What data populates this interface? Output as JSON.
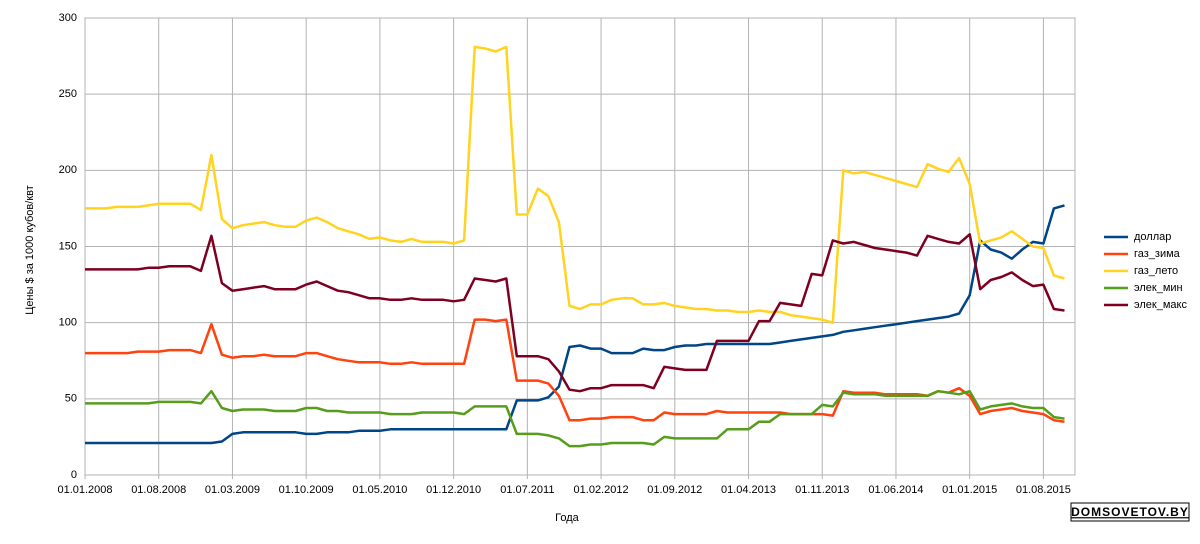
{
  "chart_data": {
    "type": "line",
    "y_label": "Цены $ за 1000 кубов/квт",
    "x_label": "Года",
    "watermark": "DOMSOVETOV.BY",
    "legend": "right",
    "grid": true,
    "ylim": [
      0,
      300
    ],
    "yticks": [
      0,
      50,
      100,
      150,
      200,
      250,
      300
    ],
    "categories": [
      "01.01.2008",
      null,
      null,
      null,
      null,
      null,
      null,
      "01.08.2008",
      null,
      null,
      null,
      null,
      null,
      null,
      "01.03.2009",
      null,
      null,
      null,
      null,
      null,
      null,
      "01.10.2009",
      null,
      null,
      null,
      null,
      null,
      null,
      "01.05.2010",
      null,
      null,
      null,
      null,
      null,
      null,
      "01.12.2010",
      null,
      null,
      null,
      null,
      null,
      null,
      "01.07.2011",
      null,
      null,
      null,
      null,
      null,
      null,
      "01.02.2012",
      null,
      null,
      null,
      null,
      null,
      null,
      "01.09.2012",
      null,
      null,
      null,
      null,
      null,
      null,
      "01.04.2013",
      null,
      null,
      null,
      null,
      null,
      null,
      "01.11.2013",
      null,
      null,
      null,
      null,
      null,
      null,
      "01.06.2014",
      null,
      null,
      null,
      null,
      null,
      null,
      "01.01.2015",
      null,
      null,
      null,
      null,
      null,
      null,
      "01.08.2015",
      null,
      null
    ],
    "series": [
      {
        "name": "доллар",
        "color": "#004586",
        "values": [
          21,
          21,
          21,
          21,
          21,
          21,
          21,
          21,
          21,
          21,
          21,
          21,
          21,
          22,
          27,
          28,
          28,
          28,
          28,
          28,
          28,
          27,
          27,
          28,
          28,
          28,
          29,
          29,
          29,
          30,
          30,
          30,
          30,
          30,
          30,
          30,
          30,
          30,
          30,
          30,
          30,
          49,
          49,
          49,
          51,
          58,
          84,
          85,
          83,
          83,
          80,
          80,
          80,
          83,
          82,
          82,
          84,
          85,
          85,
          86,
          86,
          86,
          86,
          86,
          86,
          86,
          87,
          88,
          89,
          90,
          91,
          92,
          94,
          95,
          96,
          97,
          98,
          99,
          100,
          101,
          102,
          103,
          104,
          106,
          118,
          154,
          148,
          146,
          142,
          148,
          153,
          152,
          175,
          177
        ]
      },
      {
        "name": "газ_зима",
        "color": "#ff420e",
        "values": [
          80,
          80,
          80,
          80,
          80,
          81,
          81,
          81,
          82,
          82,
          82,
          80,
          99,
          79,
          77,
          78,
          78,
          79,
          78,
          78,
          78,
          80,
          80,
          78,
          76,
          75,
          74,
          74,
          74,
          73,
          73,
          74,
          73,
          73,
          73,
          73,
          73,
          102,
          102,
          101,
          102,
          62,
          62,
          62,
          60,
          52,
          36,
          36,
          37,
          37,
          38,
          38,
          38,
          36,
          36,
          41,
          40,
          40,
          40,
          40,
          42,
          41,
          41,
          41,
          41,
          41,
          41,
          40,
          40,
          40,
          40,
          39,
          55,
          54,
          54,
          54,
          53,
          53,
          53,
          53,
          52,
          55,
          54,
          57,
          52,
          40,
          42,
          43,
          44,
          42,
          41,
          40,
          36,
          35
        ]
      },
      {
        "name": "газ_лето",
        "color": "#ffd320",
        "values": [
          175,
          175,
          175,
          176,
          176,
          176,
          177,
          178,
          178,
          178,
          178,
          174,
          210,
          168,
          162,
          164,
          165,
          166,
          164,
          163,
          163,
          167,
          169,
          166,
          162,
          160,
          158,
          155,
          156,
          154,
          153,
          155,
          153,
          153,
          153,
          152,
          154,
          281,
          280,
          278,
          281,
          171,
          171,
          188,
          183,
          166,
          111,
          109,
          112,
          112,
          115,
          116,
          116,
          112,
          112,
          113,
          111,
          110,
          109,
          109,
          108,
          108,
          107,
          107,
          108,
          107,
          107,
          105,
          104,
          103,
          102,
          100,
          200,
          198,
          199,
          197,
          195,
          193,
          191,
          189,
          204,
          201,
          199,
          208,
          191,
          152,
          154,
          156,
          160,
          155,
          150,
          149,
          131,
          129
        ]
      },
      {
        "name": "элек_мин",
        "color": "#579d1c",
        "values": [
          47,
          47,
          47,
          47,
          47,
          47,
          47,
          48,
          48,
          48,
          48,
          47,
          55,
          44,
          42,
          43,
          43,
          43,
          42,
          42,
          42,
          44,
          44,
          42,
          42,
          41,
          41,
          41,
          41,
          40,
          40,
          40,
          41,
          41,
          41,
          41,
          40,
          45,
          45,
          45,
          45,
          27,
          27,
          27,
          26,
          24,
          19,
          19,
          20,
          20,
          21,
          21,
          21,
          21,
          20,
          25,
          24,
          24,
          24,
          24,
          24,
          30,
          30,
          30,
          35,
          35,
          40,
          40,
          40,
          40,
          46,
          45,
          54,
          53,
          53,
          53,
          52,
          52,
          52,
          52,
          52,
          55,
          54,
          53,
          55,
          43,
          45,
          46,
          47,
          45,
          44,
          44,
          38,
          37
        ]
      },
      {
        "name": "элек_макс",
        "color": "#7e0021",
        "values": [
          135,
          135,
          135,
          135,
          135,
          135,
          136,
          136,
          137,
          137,
          137,
          134,
          157,
          126,
          121,
          122,
          123,
          124,
          122,
          122,
          122,
          125,
          127,
          124,
          121,
          120,
          118,
          116,
          116,
          115,
          115,
          116,
          115,
          115,
          115,
          114,
          115,
          129,
          128,
          127,
          129,
          78,
          78,
          78,
          76,
          68,
          56,
          55,
          57,
          57,
          59,
          59,
          59,
          59,
          57,
          71,
          70,
          69,
          69,
          69,
          88,
          88,
          88,
          88,
          101,
          101,
          113,
          112,
          111,
          132,
          131,
          154,
          152,
          153,
          151,
          149,
          148,
          147,
          146,
          144,
          157,
          155,
          153,
          152,
          158,
          122,
          128,
          130,
          133,
          128,
          124,
          125,
          109,
          108
        ]
      }
    ]
  }
}
